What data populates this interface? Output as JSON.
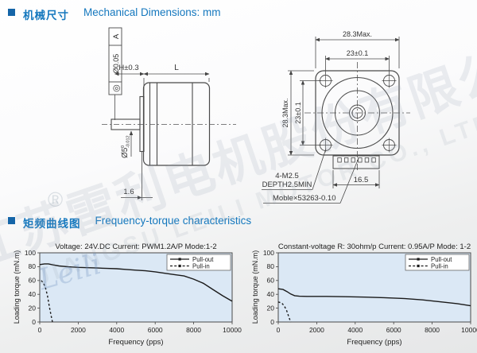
{
  "sections": {
    "mechanical": {
      "title_zh": "机械尺寸",
      "title_en": "Mechanical Dimensions: mm"
    },
    "torque": {
      "title_zh": "矩频曲线图",
      "title_en": "Frequency-torque characteristics"
    }
  },
  "drawing": {
    "side_view": {
      "tol_symbol": "◎",
      "tol_value": "Ø0.05",
      "tol_datum": "A",
      "dim_h": "H±0.3",
      "dim_l": "L",
      "shaft_dia": "Ø5",
      "shaft_tol_top": "0",
      "shaft_tol_bot": "-0.012",
      "dim_flange": "1.6"
    },
    "front_view": {
      "dim_width_max": "28.3Max.",
      "dim_hole_pitch_h": "23±0.1",
      "dim_height_max": "28.3Max.",
      "dim_hole_pitch_v": "23±0.1",
      "screw_note_line1": "4-M2.5",
      "screw_note_line2": "DEPTH2.5MIN",
      "dim_connector": "16.5",
      "connector_note": "Moble×53263-0.10"
    }
  },
  "watermark": {
    "line_zh": "江苏雷利电机股份有限公司",
    "line_en": "JIANGSU LEILI MOTOR CO., LTD.",
    "script": "Leili",
    "reg": "®"
  },
  "colors": {
    "accent": "#1578be",
    "bullet": "#1565a8",
    "plot_bg": "#dbe8f5",
    "plot_border": "#4a4a4a",
    "curve": "#1a1a1a"
  },
  "chart_data": [
    {
      "type": "line",
      "title": "Voltage: 24V.DC Current: PWM1.2A/P Mode:1-2",
      "xlabel": "Frequency (pps)",
      "ylabel": "Loading torque (mN.m)",
      "xlim": [
        0,
        10000
      ],
      "ylim": [
        0,
        100
      ],
      "xticks": [
        0,
        2000,
        4000,
        6000,
        8000,
        10000
      ],
      "yticks": [
        0,
        20,
        40,
        60,
        80,
        100
      ],
      "grid": false,
      "legend_position": "top-right",
      "series": [
        {
          "name": "Pull-out",
          "style": "solid",
          "points": [
            [
              0,
              83
            ],
            [
              250,
              84
            ],
            [
              450,
              84
            ],
            [
              700,
              82.5
            ],
            [
              1000,
              81
            ],
            [
              1500,
              79.8
            ],
            [
              2000,
              79
            ],
            [
              2500,
              78.5
            ],
            [
              3000,
              78
            ],
            [
              3500,
              77.5
            ],
            [
              4000,
              77
            ],
            [
              4500,
              76
            ],
            [
              5000,
              75
            ],
            [
              5500,
              74
            ],
            [
              6000,
              72.5
            ],
            [
              6500,
              70.5
            ],
            [
              7000,
              68.5
            ],
            [
              7500,
              66.5
            ],
            [
              8000,
              62
            ],
            [
              8500,
              56
            ],
            [
              9000,
              47
            ],
            [
              9500,
              38
            ],
            [
              10000,
              30
            ]
          ]
        },
        {
          "name": "Pull-in",
          "style": "dashed",
          "points": [
            [
              80,
              60
            ],
            [
              200,
              56
            ],
            [
              300,
              49
            ],
            [
              400,
              38
            ],
            [
              500,
              22
            ],
            [
              600,
              8
            ],
            [
              660,
              0
            ]
          ]
        }
      ]
    },
    {
      "type": "line",
      "title": "Constant-voltage R: 30ohm/p Current: 0.95A/P Mode: 1-2",
      "xlabel": "Frequency (pps)",
      "ylabel": "Loading torque (mN.m)",
      "xlim": [
        0,
        10000
      ],
      "ylim": [
        0,
        100
      ],
      "xticks": [
        0,
        2000,
        4000,
        6000,
        8000,
        10000
      ],
      "yticks": [
        0,
        20,
        40,
        60,
        80,
        100
      ],
      "grid": false,
      "legend_position": "top-right",
      "series": [
        {
          "name": "Pull-out",
          "style": "solid",
          "points": [
            [
              0,
              48
            ],
            [
              250,
              47
            ],
            [
              450,
              44
            ],
            [
              650,
              40.5
            ],
            [
              850,
              38
            ],
            [
              1100,
              37.2
            ],
            [
              1500,
              37
            ],
            [
              2500,
              37
            ],
            [
              3500,
              36.6
            ],
            [
              4500,
              36
            ],
            [
              5500,
              35.2
            ],
            [
              6500,
              34
            ],
            [
              7500,
              32
            ],
            [
              8500,
              29
            ],
            [
              9300,
              26.5
            ],
            [
              10000,
              23.5
            ]
          ]
        },
        {
          "name": "Pull-in",
          "style": "dashed",
          "points": [
            [
              0,
              29
            ],
            [
              180,
              27.5
            ],
            [
              320,
              23
            ],
            [
              430,
              17
            ],
            [
              530,
              9
            ],
            [
              620,
              2
            ],
            [
              660,
              0
            ]
          ]
        }
      ]
    }
  ]
}
